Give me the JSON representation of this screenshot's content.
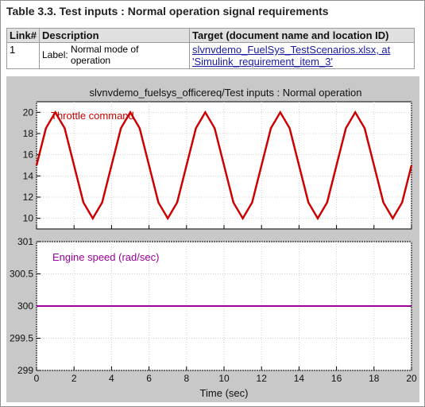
{
  "table_title": "Table 3.3. Test inputs : Normal operation signal requirements",
  "headers": {
    "link": "Link#",
    "description": "Description",
    "target": "Target (document name and location ID)"
  },
  "row": {
    "link": "1",
    "label_prefix": "Label:",
    "label_line1": "Normal mode of",
    "label_line2": "operation",
    "target_line1": "slvnvdemo_FuelSys_TestScenarios.xlsx, at",
    "target_line2": "'Simulink_requirement_item_3'"
  },
  "chart_data": [
    {
      "type": "line",
      "title": "slvnvdemo_fuelsys_officereq/Test inputs : Normal operation",
      "series": [
        {
          "name": "Throttle command",
          "color": "#cc0000",
          "x": [
            0,
            0.5,
            1,
            1.5,
            2,
            2.5,
            3,
            3.5,
            4,
            4.5,
            5,
            5.5,
            6,
            6.5,
            7,
            7.5,
            8,
            8.5,
            9,
            9.5,
            10,
            10.5,
            11,
            11.5,
            12,
            12.5,
            13,
            13.5,
            14,
            14.5,
            15,
            15.5,
            16,
            16.5,
            17,
            17.5,
            18,
            18.5,
            19,
            19.5,
            20
          ],
          "values": [
            15,
            18.5,
            20,
            18.5,
            15,
            11.5,
            10,
            11.5,
            15,
            18.5,
            20,
            18.5,
            15,
            11.5,
            10,
            11.5,
            15,
            18.5,
            20,
            18.5,
            15,
            11.5,
            10,
            11.5,
            15,
            18.5,
            20,
            18.5,
            15,
            11.5,
            10,
            11.5,
            15,
            18.5,
            20,
            18.5,
            15,
            11.5,
            10,
            11.5,
            15
          ]
        }
      ],
      "xlim": [
        0,
        20
      ],
      "ylim": [
        9,
        21
      ],
      "yticks": [
        "10",
        "12",
        "14",
        "16",
        "18",
        "20"
      ],
      "grid": true
    },
    {
      "type": "line",
      "series": [
        {
          "name": "Engine speed (rad/sec)",
          "color": "#990099",
          "x": [
            0,
            20
          ],
          "values": [
            300,
            300
          ]
        }
      ],
      "xlim": [
        0,
        20
      ],
      "ylim": [
        299,
        301
      ],
      "yticks": [
        "299",
        "299.5",
        "300",
        "300.5",
        "301"
      ],
      "xticks": [
        "0",
        "2",
        "4",
        "6",
        "8",
        "10",
        "12",
        "14",
        "16",
        "18",
        "20"
      ],
      "xlabel": "Time (sec)",
      "grid": true
    }
  ]
}
